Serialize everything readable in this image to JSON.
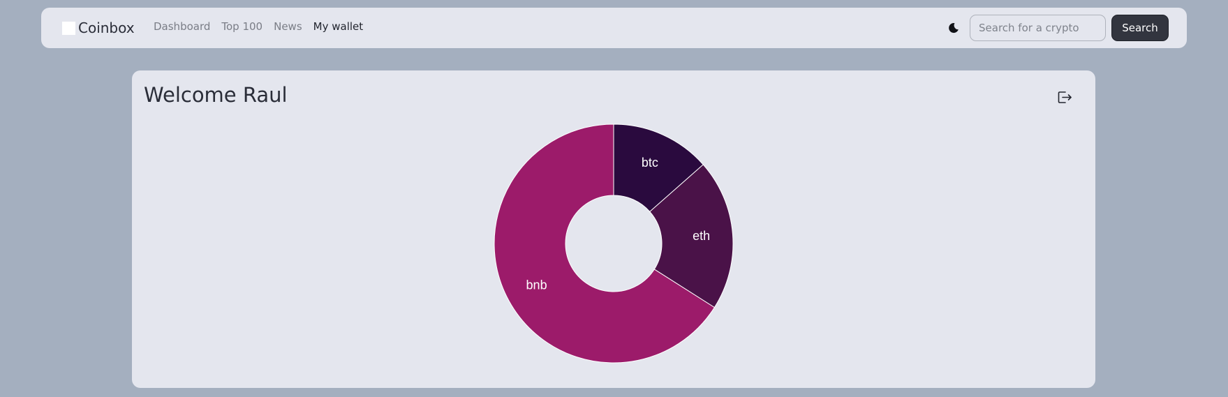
{
  "navbar": {
    "brand": "Coinbox",
    "links": [
      {
        "label": "Dashboard",
        "active": false
      },
      {
        "label": "Top 100",
        "active": false
      },
      {
        "label": "News",
        "active": false
      },
      {
        "label": "My wallet",
        "active": true
      }
    ],
    "theme_icon": "moon-icon",
    "search": {
      "placeholder": "Search for a crypto",
      "value": "",
      "button_label": "Search"
    }
  },
  "main": {
    "welcome": "Welcome Raul",
    "logout_icon": "logout-icon"
  },
  "chart_data": {
    "type": "pie",
    "style": "donut",
    "title": "",
    "slices": [
      {
        "label": "btc",
        "value": 13.5,
        "color": "#2a0a3e"
      },
      {
        "label": "eth",
        "value": 20.5,
        "color": "#4a1248"
      },
      {
        "label": "bnb",
        "value": 66.0,
        "color": "#9c1b6a"
      }
    ]
  },
  "colors": {
    "background": "#a4afbf",
    "surface": "#e4e6ee",
    "text": "#2a2d38",
    "muted_text": "#7a7d86",
    "button": "#32353f"
  }
}
